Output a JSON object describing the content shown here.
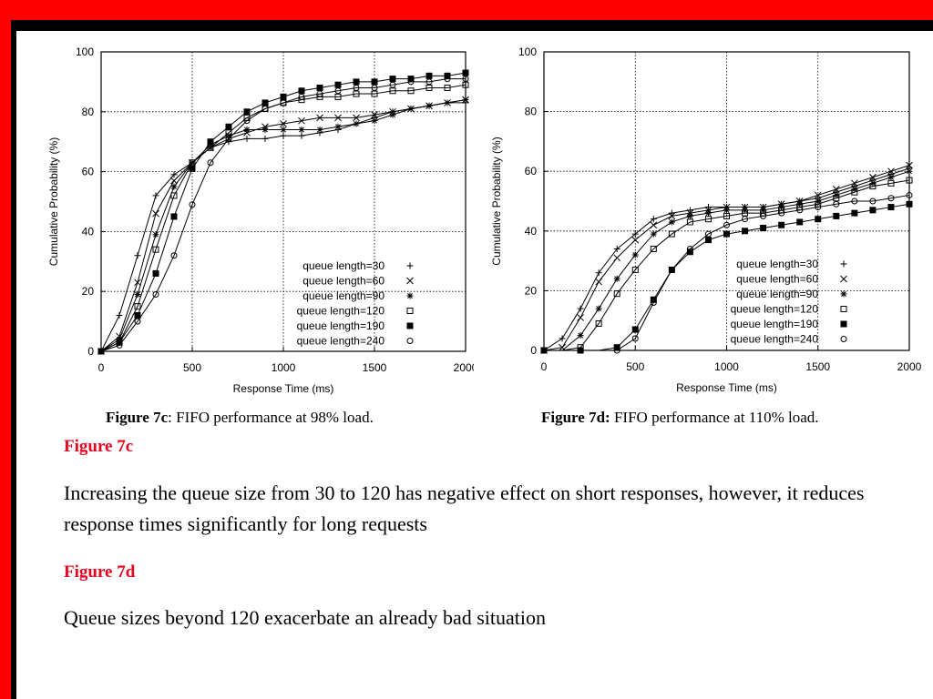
{
  "captions": {
    "c": {
      "label": "Figure 7c",
      "rest": ": FIFO performance at 98% load."
    },
    "d": {
      "label": "Figure 7d:",
      "rest": " FIFO performance at 110% load."
    }
  },
  "sections": [
    {
      "heading": "Figure 7c",
      "text": "Increasing the queue size from 30 to 120 has negative effect on short responses, however, it reduces response times significantly for long requests"
    },
    {
      "heading": "Figure 7d",
      "text": "Queue sizes beyond 120 exacerbate an already bad situation"
    }
  ],
  "colors": {
    "frame": "#ff0000",
    "border": "#000000",
    "heading": "#e8001c"
  },
  "chart_data": [
    {
      "id": "chart-c",
      "type": "line",
      "xlabel": "Response Time (ms)",
      "ylabel": "Cumulative Probability (%)",
      "xlim": [
        0,
        2000
      ],
      "ylim": [
        0,
        100
      ],
      "xticks": [
        0,
        500,
        1000,
        1500,
        2000
      ],
      "yticks": [
        0,
        20,
        40,
        60,
        80,
        100
      ],
      "grid": true,
      "legend_position": "bottom-right",
      "series": [
        {
          "name": "queue length=30",
          "marker": "plus",
          "x": [
            0,
            100,
            200,
            300,
            400,
            500,
            600,
            700,
            800,
            900,
            1000,
            1100,
            1200,
            1300,
            1400,
            1500,
            1600,
            1700,
            1800,
            1900,
            2000
          ],
          "y": [
            0,
            12,
            32,
            52,
            59,
            63,
            68,
            70,
            71,
            71,
            72,
            72,
            73,
            74,
            76,
            78,
            80,
            81,
            82,
            83,
            83
          ]
        },
        {
          "name": "queue length=60",
          "marker": "x",
          "x": [
            0,
            100,
            200,
            300,
            400,
            500,
            600,
            700,
            800,
            900,
            1000,
            1100,
            1200,
            1300,
            1400,
            1500,
            1600,
            1700,
            1800,
            1900,
            2000
          ],
          "y": [
            0,
            5,
            23,
            46,
            57,
            63,
            68,
            71,
            73,
            75,
            76,
            77,
            78,
            78,
            78,
            79,
            80,
            81,
            82,
            83,
            84
          ]
        },
        {
          "name": "queue length=90",
          "marker": "star",
          "x": [
            0,
            100,
            200,
            300,
            400,
            500,
            600,
            700,
            800,
            900,
            1000,
            1100,
            1200,
            1300,
            1400,
            1500,
            1600,
            1700,
            1800,
            1900,
            2000
          ],
          "y": [
            0,
            4,
            19,
            39,
            55,
            63,
            69,
            72,
            74,
            74,
            74,
            74,
            74,
            75,
            76,
            77,
            79,
            81,
            82,
            83,
            84
          ]
        },
        {
          "name": "queue length=120",
          "marker": "square",
          "x": [
            0,
            100,
            200,
            300,
            400,
            500,
            600,
            700,
            800,
            900,
            1000,
            1100,
            1200,
            1300,
            1400,
            1500,
            1600,
            1700,
            1800,
            1900,
            2000
          ],
          "y": [
            0,
            3,
            15,
            34,
            52,
            63,
            68,
            73,
            78,
            81,
            83,
            84,
            85,
            85,
            86,
            86,
            87,
            87,
            88,
            88,
            89
          ]
        },
        {
          "name": "queue length=190",
          "marker": "filled-square",
          "x": [
            0,
            100,
            200,
            300,
            400,
            500,
            600,
            700,
            800,
            900,
            1000,
            1100,
            1200,
            1300,
            1400,
            1500,
            1600,
            1700,
            1800,
            1900,
            2000
          ],
          "y": [
            0,
            3,
            12,
            26,
            45,
            61,
            70,
            75,
            80,
            83,
            85,
            87,
            88,
            89,
            90,
            90,
            91,
            91,
            92,
            92,
            93
          ]
        },
        {
          "name": "queue length=240",
          "marker": "circle",
          "x": [
            0,
            100,
            200,
            300,
            400,
            500,
            600,
            700,
            800,
            900,
            1000,
            1100,
            1200,
            1300,
            1400,
            1500,
            1600,
            1700,
            1800,
            1900,
            2000
          ],
          "y": [
            0,
            2,
            10,
            19,
            32,
            49,
            63,
            71,
            77,
            81,
            83,
            85,
            86,
            87,
            88,
            88,
            89,
            90,
            90,
            91,
            91
          ]
        }
      ]
    },
    {
      "id": "chart-d",
      "type": "line",
      "xlabel": "Response Time (ms)",
      "ylabel": "Cumulative Probability (%)",
      "xlim": [
        0,
        2000
      ],
      "ylim": [
        0,
        100
      ],
      "xticks": [
        0,
        500,
        1000,
        1500,
        2000
      ],
      "yticks": [
        0,
        20,
        40,
        60,
        80,
        100
      ],
      "grid": true,
      "legend_position": "bottom-right",
      "series": [
        {
          "name": "queue length=30",
          "marker": "plus",
          "x": [
            0,
            100,
            200,
            300,
            400,
            500,
            600,
            700,
            800,
            900,
            1000,
            1100,
            1200,
            1300,
            1400,
            1500,
            1600,
            1700,
            1800,
            1900,
            2000
          ],
          "y": [
            0,
            4,
            14,
            26,
            34,
            39,
            44,
            46,
            47,
            48,
            48,
            48,
            48,
            49,
            50,
            51,
            53,
            55,
            57,
            59,
            61
          ]
        },
        {
          "name": "queue length=60",
          "marker": "x",
          "x": [
            0,
            100,
            200,
            300,
            400,
            500,
            600,
            700,
            800,
            900,
            1000,
            1100,
            1200,
            1300,
            1400,
            1500,
            1600,
            1700,
            1800,
            1900,
            2000
          ],
          "y": [
            0,
            1,
            11,
            23,
            31,
            37,
            42,
            45,
            46,
            47,
            48,
            48,
            48,
            49,
            50,
            52,
            54,
            56,
            58,
            60,
            62
          ]
        },
        {
          "name": "queue length=90",
          "marker": "star",
          "x": [
            0,
            100,
            200,
            300,
            400,
            500,
            600,
            700,
            800,
            900,
            1000,
            1100,
            1200,
            1300,
            1400,
            1500,
            1600,
            1700,
            1800,
            1900,
            2000
          ],
          "y": [
            0,
            0,
            5,
            14,
            24,
            32,
            39,
            43,
            45,
            46,
            47,
            47,
            47,
            48,
            49,
            50,
            52,
            54,
            56,
            58,
            60
          ]
        },
        {
          "name": "queue length=120",
          "marker": "square",
          "x": [
            0,
            100,
            200,
            300,
            400,
            500,
            600,
            700,
            800,
            900,
            1000,
            1100,
            1200,
            1300,
            1400,
            1500,
            1600,
            1700,
            1800,
            1900,
            2000
          ],
          "y": [
            0,
            0,
            1,
            9,
            19,
            27,
            34,
            39,
            43,
            44,
            45,
            46,
            46,
            47,
            48,
            49,
            51,
            53,
            55,
            56,
            57
          ]
        },
        {
          "name": "queue length=190",
          "marker": "filled-square",
          "x": [
            0,
            100,
            200,
            300,
            400,
            500,
            600,
            700,
            800,
            900,
            1000,
            1100,
            1200,
            1300,
            1400,
            1500,
            1600,
            1700,
            1800,
            1900,
            2000
          ],
          "y": [
            0,
            0,
            0,
            0,
            1,
            7,
            17,
            27,
            33,
            37,
            39,
            40,
            41,
            42,
            43,
            44,
            45,
            46,
            47,
            48,
            49
          ]
        },
        {
          "name": "queue length=240",
          "marker": "circle",
          "x": [
            0,
            100,
            200,
            300,
            400,
            500,
            600,
            700,
            800,
            900,
            1000,
            1100,
            1200,
            1300,
            1400,
            1500,
            1600,
            1700,
            1800,
            1900,
            2000
          ],
          "y": [
            0,
            0,
            0,
            0,
            0,
            4,
            16,
            27,
            34,
            39,
            42,
            44,
            45,
            46,
            47,
            48,
            49,
            50,
            50,
            51,
            52
          ]
        }
      ]
    }
  ]
}
